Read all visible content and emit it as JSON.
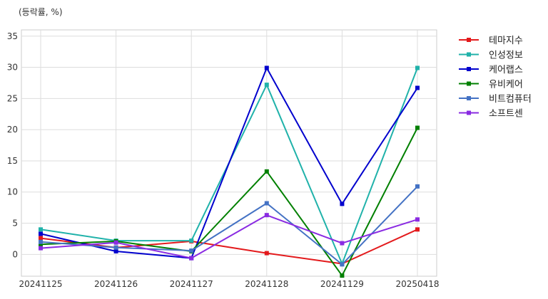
{
  "chart_data": {
    "type": "line",
    "unit_label": "(등락률, %)",
    "categories": [
      "20241125",
      "20241126",
      "20241127",
      "20241128",
      "20241129",
      "20250418"
    ],
    "ylim": [
      -3.5,
      36
    ],
    "yticks": [
      0,
      5,
      10,
      15,
      20,
      25,
      30,
      35
    ],
    "grid": true,
    "legend_position": "top-right-outside",
    "series": [
      {
        "name": "테마지수",
        "color": "#e31a1c",
        "values": [
          2.6,
          1.1,
          2.1,
          0.2,
          -1.5,
          4.0
        ]
      },
      {
        "name": "인성정보",
        "color": "#20b2aa",
        "values": [
          4.0,
          2.2,
          2.2,
          27.2,
          -1.5,
          29.9
        ]
      },
      {
        "name": "케어랩스",
        "color": "#0000cd",
        "values": [
          3.3,
          0.5,
          -0.6,
          29.9,
          8.1,
          26.7
        ]
      },
      {
        "name": "유비케어",
        "color": "#008000",
        "values": [
          1.6,
          2.1,
          0.5,
          13.3,
          -3.4,
          20.3
        ]
      },
      {
        "name": "비트컴퓨터",
        "color": "#4472c4",
        "values": [
          2.0,
          1.1,
          0.6,
          8.2,
          -1.6,
          10.9
        ]
      },
      {
        "name": "소프트센",
        "color": "#8a2be2",
        "values": [
          1.0,
          1.9,
          -0.6,
          6.3,
          1.8,
          5.6
        ]
      }
    ]
  }
}
